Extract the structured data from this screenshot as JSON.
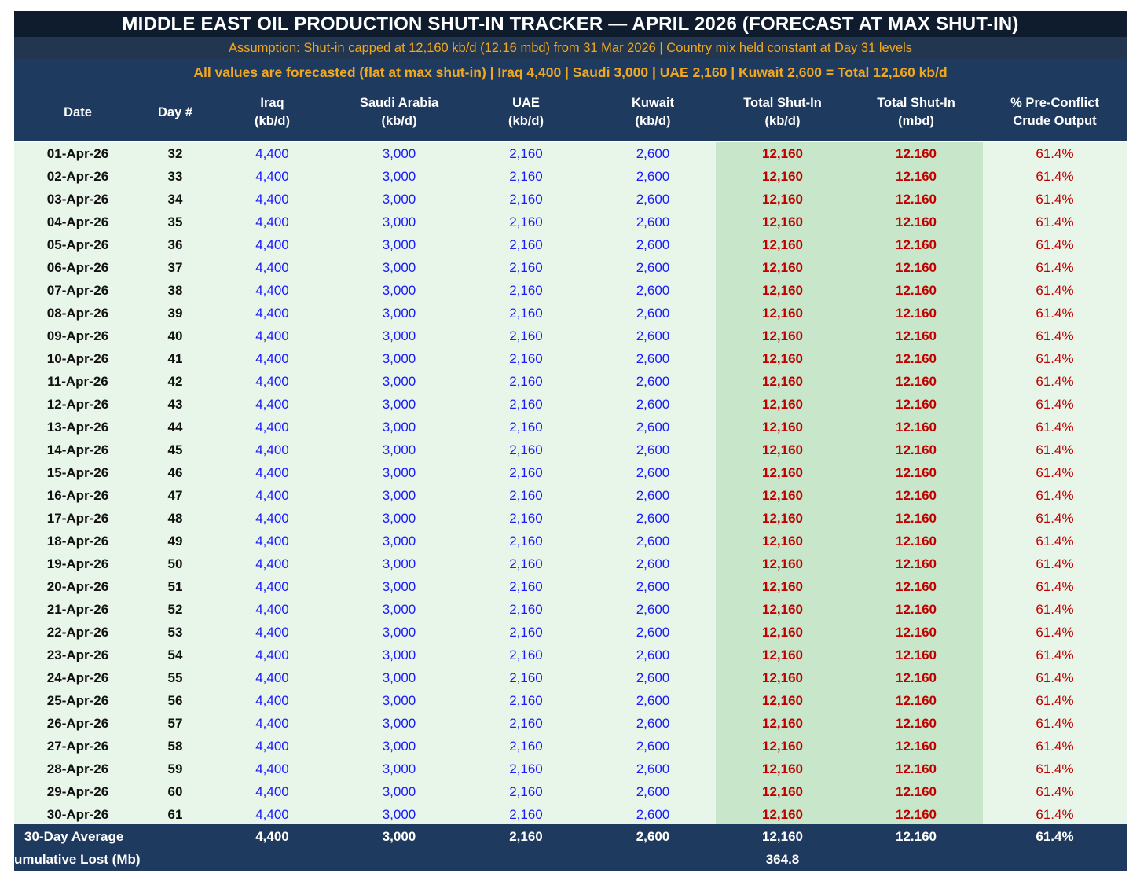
{
  "title": "MIDDLE EAST OIL PRODUCTION SHUT-IN TRACKER  —  APRIL 2026  (FORECAST AT MAX SHUT-IN)",
  "assumption": "Assumption: Shut-in capped at 12,160 kb/d (12.16 mbd) from 31 Mar 2026  |  Country mix held constant at Day 31 levels",
  "summary": "All values are forecasted (flat at max shut-in)  |  Iraq 4,400  |  Saudi 3,000  |  UAE 2,160  |  Kuwait 2,600  =  Total 12,160 kb/d",
  "columns": [
    "Date",
    "Day #",
    "Iraq\n(kb/d)",
    "Saudi Arabia\n(kb/d)",
    "UAE\n(kb/d)",
    "Kuwait\n(kb/d)",
    "Total Shut-In\n(kb/d)",
    "Total Shut-In\n(mbd)",
    "% Pre-Conflict\nCrude Output"
  ],
  "rows": [
    [
      "01-Apr-26",
      "32",
      "4,400",
      "3,000",
      "2,160",
      "2,600",
      "12,160",
      "12.160",
      "61.4%"
    ],
    [
      "02-Apr-26",
      "33",
      "4,400",
      "3,000",
      "2,160",
      "2,600",
      "12,160",
      "12.160",
      "61.4%"
    ],
    [
      "03-Apr-26",
      "34",
      "4,400",
      "3,000",
      "2,160",
      "2,600",
      "12,160",
      "12.160",
      "61.4%"
    ],
    [
      "04-Apr-26",
      "35",
      "4,400",
      "3,000",
      "2,160",
      "2,600",
      "12,160",
      "12.160",
      "61.4%"
    ],
    [
      "05-Apr-26",
      "36",
      "4,400",
      "3,000",
      "2,160",
      "2,600",
      "12,160",
      "12.160",
      "61.4%"
    ],
    [
      "06-Apr-26",
      "37",
      "4,400",
      "3,000",
      "2,160",
      "2,600",
      "12,160",
      "12.160",
      "61.4%"
    ],
    [
      "07-Apr-26",
      "38",
      "4,400",
      "3,000",
      "2,160",
      "2,600",
      "12,160",
      "12.160",
      "61.4%"
    ],
    [
      "08-Apr-26",
      "39",
      "4,400",
      "3,000",
      "2,160",
      "2,600",
      "12,160",
      "12.160",
      "61.4%"
    ],
    [
      "09-Apr-26",
      "40",
      "4,400",
      "3,000",
      "2,160",
      "2,600",
      "12,160",
      "12.160",
      "61.4%"
    ],
    [
      "10-Apr-26",
      "41",
      "4,400",
      "3,000",
      "2,160",
      "2,600",
      "12,160",
      "12.160",
      "61.4%"
    ],
    [
      "11-Apr-26",
      "42",
      "4,400",
      "3,000",
      "2,160",
      "2,600",
      "12,160",
      "12.160",
      "61.4%"
    ],
    [
      "12-Apr-26",
      "43",
      "4,400",
      "3,000",
      "2,160",
      "2,600",
      "12,160",
      "12.160",
      "61.4%"
    ],
    [
      "13-Apr-26",
      "44",
      "4,400",
      "3,000",
      "2,160",
      "2,600",
      "12,160",
      "12.160",
      "61.4%"
    ],
    [
      "14-Apr-26",
      "45",
      "4,400",
      "3,000",
      "2,160",
      "2,600",
      "12,160",
      "12.160",
      "61.4%"
    ],
    [
      "15-Apr-26",
      "46",
      "4,400",
      "3,000",
      "2,160",
      "2,600",
      "12,160",
      "12.160",
      "61.4%"
    ],
    [
      "16-Apr-26",
      "47",
      "4,400",
      "3,000",
      "2,160",
      "2,600",
      "12,160",
      "12.160",
      "61.4%"
    ],
    [
      "17-Apr-26",
      "48",
      "4,400",
      "3,000",
      "2,160",
      "2,600",
      "12,160",
      "12.160",
      "61.4%"
    ],
    [
      "18-Apr-26",
      "49",
      "4,400",
      "3,000",
      "2,160",
      "2,600",
      "12,160",
      "12.160",
      "61.4%"
    ],
    [
      "19-Apr-26",
      "50",
      "4,400",
      "3,000",
      "2,160",
      "2,600",
      "12,160",
      "12.160",
      "61.4%"
    ],
    [
      "20-Apr-26",
      "51",
      "4,400",
      "3,000",
      "2,160",
      "2,600",
      "12,160",
      "12.160",
      "61.4%"
    ],
    [
      "21-Apr-26",
      "52",
      "4,400",
      "3,000",
      "2,160",
      "2,600",
      "12,160",
      "12.160",
      "61.4%"
    ],
    [
      "22-Apr-26",
      "53",
      "4,400",
      "3,000",
      "2,160",
      "2,600",
      "12,160",
      "12.160",
      "61.4%"
    ],
    [
      "23-Apr-26",
      "54",
      "4,400",
      "3,000",
      "2,160",
      "2,600",
      "12,160",
      "12.160",
      "61.4%"
    ],
    [
      "24-Apr-26",
      "55",
      "4,400",
      "3,000",
      "2,160",
      "2,600",
      "12,160",
      "12.160",
      "61.4%"
    ],
    [
      "25-Apr-26",
      "56",
      "4,400",
      "3,000",
      "2,160",
      "2,600",
      "12,160",
      "12.160",
      "61.4%"
    ],
    [
      "26-Apr-26",
      "57",
      "4,400",
      "3,000",
      "2,160",
      "2,600",
      "12,160",
      "12.160",
      "61.4%"
    ],
    [
      "27-Apr-26",
      "58",
      "4,400",
      "3,000",
      "2,160",
      "2,600",
      "12,160",
      "12.160",
      "61.4%"
    ],
    [
      "28-Apr-26",
      "59",
      "4,400",
      "3,000",
      "2,160",
      "2,600",
      "12,160",
      "12.160",
      "61.4%"
    ],
    [
      "29-Apr-26",
      "60",
      "4,400",
      "3,000",
      "2,160",
      "2,600",
      "12,160",
      "12.160",
      "61.4%"
    ],
    [
      "30-Apr-26",
      "61",
      "4,400",
      "3,000",
      "2,160",
      "2,600",
      "12,160",
      "12.160",
      "61.4%"
    ]
  ],
  "footer": {
    "average": {
      "label": "30-Day Average",
      "iraq": "4,400",
      "saudi": "3,000",
      "uae": "2,160",
      "kuwait": "2,600",
      "total_kbd": "12,160",
      "total_mbd": "12.160",
      "pct": "61.4%"
    },
    "cumulative": {
      "label": "umulative Lost (Mb)",
      "value": "364.8"
    }
  },
  "colors": {
    "title_bg": "#0f1c2e",
    "header_bg": "#1f3a5f",
    "accent_orange": "#f2a81d",
    "row_bg": "#e8f5e9",
    "highlight_bg": "#c8e6c9",
    "country_value": "#1a1aff",
    "total_value": "#c00000"
  }
}
